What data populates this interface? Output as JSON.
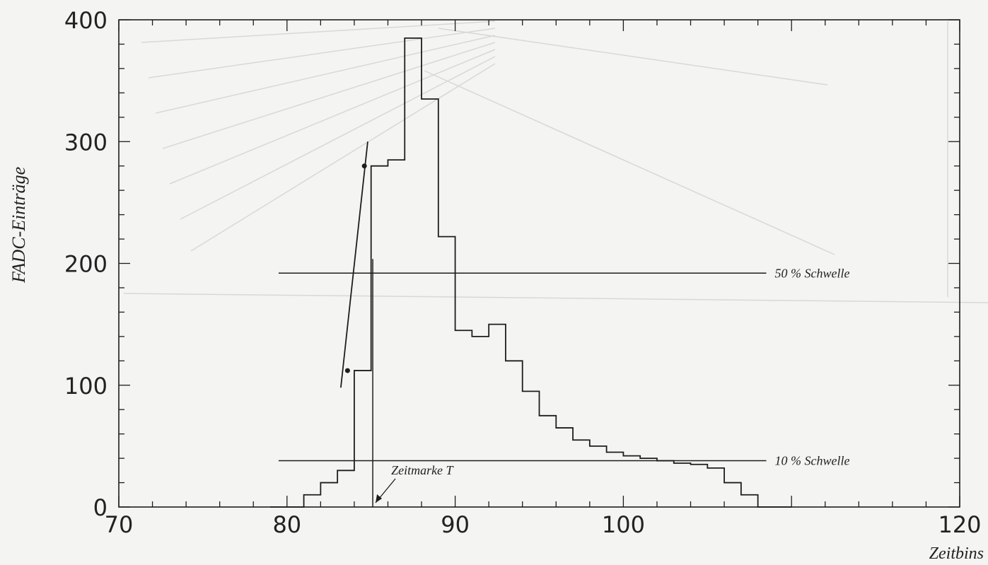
{
  "chart_data": {
    "type": "line",
    "xlabel": "Zeitbins",
    "ylabel": "FADC-Einträge",
    "xlim": [
      70,
      120
    ],
    "ylim": [
      0,
      400
    ],
    "x_ticks": [
      70,
      80,
      90,
      100,
      110,
      120
    ],
    "y_ticks": [
      0,
      100,
      200,
      300,
      400
    ],
    "x_tick_labels": [
      "70",
      "80",
      "90",
      "100",
      "",
      "120"
    ],
    "y_tick_labels": [
      "0",
      "100",
      "200",
      "300",
      "400"
    ],
    "grid": false,
    "series": [
      {
        "style": "step",
        "x": [
          79,
          80,
          81,
          82,
          83,
          84,
          85,
          86,
          87,
          88,
          89,
          90,
          91,
          92,
          93,
          94,
          95,
          96,
          97,
          98,
          99,
          100,
          101,
          102,
          103,
          104,
          105,
          106,
          107,
          108,
          109
        ],
        "y": [
          0,
          0,
          10,
          20,
          30,
          112,
          280,
          285,
          385,
          335,
          222,
          145,
          140,
          150,
          120,
          95,
          75,
          65,
          55,
          50,
          45,
          42,
          40,
          38,
          36,
          35,
          32,
          20,
          10,
          0,
          0
        ]
      },
      {
        "style": "fit-line",
        "x": [
          83.2,
          84.8
        ],
        "y": [
          98,
          300
        ]
      }
    ],
    "fit_points": [
      {
        "x": 83.6,
        "y": 112
      },
      {
        "x": 84.6,
        "y": 280
      }
    ],
    "thresholds": [
      {
        "label": "50 % Schwelle",
        "y": 192,
        "x_start": 79.5,
        "x_end": 108.5
      },
      {
        "label": "10 % Schwelle",
        "y": 38,
        "x_start": 79.5,
        "x_end": 108.5
      }
    ],
    "marker": {
      "label": "Zeitmarke T",
      "x": 85.1
    }
  }
}
